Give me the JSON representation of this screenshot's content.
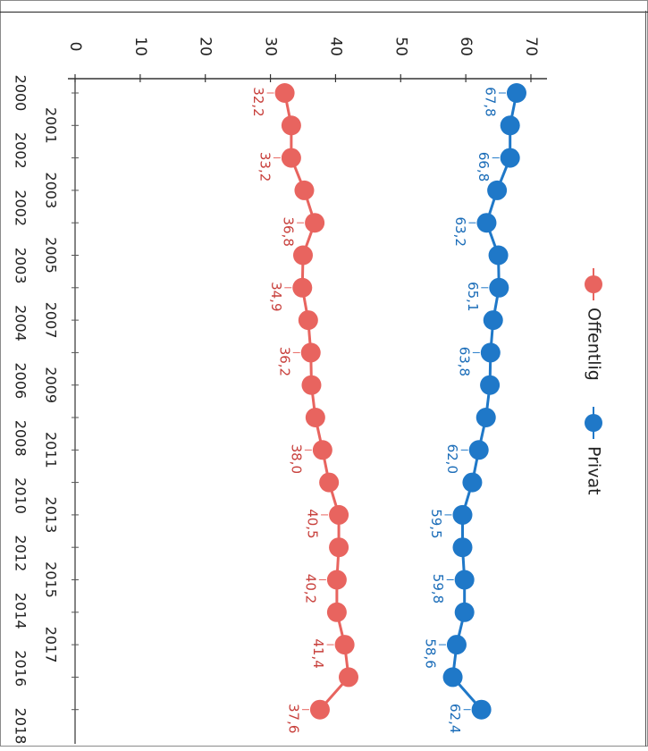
{
  "chart_data": {
    "type": "line",
    "title": "",
    "xlabel": "",
    "ylabel": "",
    "ylim": [
      0,
      70
    ],
    "y_ticks": [
      0,
      10,
      20,
      30,
      40,
      50,
      60,
      70
    ],
    "orientation": "rotated 90 degrees clockwise (value axis across the top, years down the side)",
    "x_tick_labels_row1": [
      "2001",
      "2003",
      "2005",
      "2007",
      "2009",
      "2011",
      "2013",
      "2015",
      "2017"
    ],
    "x_tick_labels_row2": [
      "2000",
      "2002",
      "2002",
      "2003",
      "2004",
      "2006",
      "2008",
      "2010",
      "2012",
      "2014",
      "2016",
      "2018"
    ],
    "legend_position": "right of plot, top",
    "legend": [
      "Offentlig",
      "Privat"
    ],
    "series": [
      {
        "name": "Offentlig",
        "color": "#e8645f",
        "values": [
          32.2,
          33.2,
          33.2,
          35.2,
          36.8,
          35.0,
          34.9,
          35.8,
          36.2,
          36.3,
          36.9,
          38.0,
          39.0,
          40.5,
          40.5,
          40.2,
          40.2,
          41.4,
          42.0,
          37.6
        ],
        "data_labels": {
          "0": "32,2",
          "2": "33,2",
          "4": "36,8",
          "6": "34,9",
          "8": "36,2",
          "11": "38,0",
          "13": "40,5",
          "15": "40,2",
          "17": "41,4",
          "19": "37,6"
        }
      },
      {
        "name": "Privat",
        "color": "#1f78c8",
        "values": [
          67.8,
          66.8,
          66.8,
          64.8,
          63.2,
          65.0,
          65.1,
          64.2,
          63.8,
          63.7,
          63.1,
          62.0,
          61.0,
          59.5,
          59.5,
          59.8,
          59.8,
          58.6,
          58.0,
          62.4
        ],
        "data_labels": {
          "0": "67,8",
          "2": "66,8",
          "4": "63,2",
          "6": "65,1",
          "8": "63,8",
          "11": "62,0",
          "13": "59,5",
          "15": "59,8",
          "17": "58,6",
          "19": "62,4"
        }
      }
    ]
  }
}
